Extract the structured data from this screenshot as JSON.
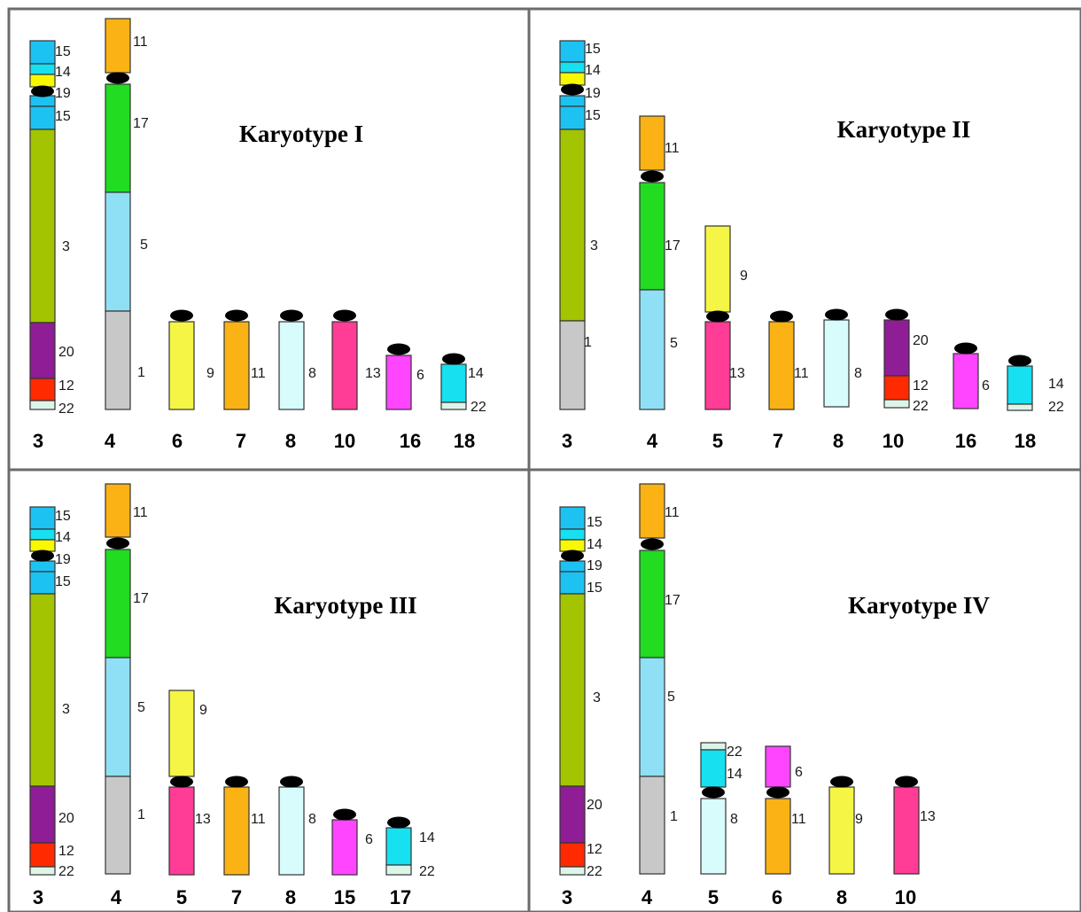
{
  "colors": {
    "1": "#c8c8c8",
    "3": "#a3c400",
    "5": "#8fe0f5",
    "6": "#ff45ff",
    "8": "#d8fbfb",
    "9": "#f5f545",
    "11": "#fbb215",
    "12": "#ff2a00",
    "13": "#ff3c96",
    "14": "#17e0f0",
    "15": "#1cc3f2",
    "17": "#21dc21",
    "19": "#f8f800",
    "20": "#8e1d96",
    "22": "#ddf5e8"
  },
  "panels": [
    {
      "title": "Karyotype I",
      "chromosomes": [
        {
          "number": "3",
          "segments": [
            {
              "label": "15"
            },
            {
              "label": "14"
            },
            {
              "label": "19"
            },
            {
              "label": "15"
            },
            {
              "label": "3"
            },
            {
              "label": "20"
            },
            {
              "label": "12"
            },
            {
              "label": "22"
            }
          ]
        },
        {
          "number": "4",
          "segments": [
            {
              "label": "11"
            },
            {
              "label": "17"
            },
            {
              "label": "5"
            },
            {
              "label": "1"
            }
          ]
        },
        {
          "number": "6",
          "segments": [
            {
              "label": "9"
            }
          ]
        },
        {
          "number": "7",
          "segments": [
            {
              "label": "11"
            }
          ]
        },
        {
          "number": "8",
          "segments": [
            {
              "label": "8"
            }
          ]
        },
        {
          "number": "10",
          "segments": [
            {
              "label": "13"
            }
          ]
        },
        {
          "number": "16",
          "segments": [
            {
              "label": "6"
            }
          ]
        },
        {
          "number": "18",
          "segments": [
            {
              "label": "14"
            },
            {
              "label": "22"
            }
          ]
        }
      ]
    },
    {
      "title": "Karyotype II",
      "chromosomes": [
        {
          "number": "3",
          "segments": [
            {
              "label": "15"
            },
            {
              "label": "14"
            },
            {
              "label": "19"
            },
            {
              "label": "15"
            },
            {
              "label": "3"
            },
            {
              "label": "1"
            }
          ]
        },
        {
          "number": "4",
          "segments": [
            {
              "label": "11"
            },
            {
              "label": "17"
            },
            {
              "label": "5"
            }
          ]
        },
        {
          "number": "5",
          "segments": [
            {
              "label": "9"
            },
            {
              "label": "13"
            }
          ]
        },
        {
          "number": "7",
          "segments": [
            {
              "label": "11"
            }
          ]
        },
        {
          "number": "8",
          "segments": [
            {
              "label": "8"
            }
          ]
        },
        {
          "number": "10",
          "segments": [
            {
              "label": "20"
            },
            {
              "label": "12"
            },
            {
              "label": "22"
            }
          ]
        },
        {
          "number": "16",
          "segments": [
            {
              "label": "6"
            }
          ]
        },
        {
          "number": "18",
          "segments": [
            {
              "label": "14"
            },
            {
              "label": "22"
            }
          ]
        }
      ]
    },
    {
      "title": "Karyotype III",
      "chromosomes": [
        {
          "number": "3",
          "segments": [
            {
              "label": "15"
            },
            {
              "label": "14"
            },
            {
              "label": "19"
            },
            {
              "label": "15"
            },
            {
              "label": "3"
            },
            {
              "label": "20"
            },
            {
              "label": "12"
            },
            {
              "label": "22"
            }
          ]
        },
        {
          "number": "4",
          "segments": [
            {
              "label": "11"
            },
            {
              "label": "17"
            },
            {
              "label": "5"
            },
            {
              "label": "1"
            }
          ]
        },
        {
          "number": "5",
          "segments": [
            {
              "label": "9"
            },
            {
              "label": "13"
            }
          ]
        },
        {
          "number": "7",
          "segments": [
            {
              "label": "11"
            }
          ]
        },
        {
          "number": "8",
          "segments": [
            {
              "label": "8"
            }
          ]
        },
        {
          "number": "15",
          "segments": [
            {
              "label": "6"
            }
          ]
        },
        {
          "number": "17",
          "segments": [
            {
              "label": "14"
            },
            {
              "label": "22"
            }
          ]
        }
      ]
    },
    {
      "title": "Karyotype IV",
      "chromosomes": [
        {
          "number": "3",
          "segments": [
            {
              "label": "15"
            },
            {
              "label": "14"
            },
            {
              "label": "19"
            },
            {
              "label": "15"
            },
            {
              "label": "3"
            },
            {
              "label": "20"
            },
            {
              "label": "12"
            },
            {
              "label": "22"
            }
          ]
        },
        {
          "number": "4",
          "segments": [
            {
              "label": "11"
            },
            {
              "label": "17"
            },
            {
              "label": "5"
            },
            {
              "label": "1"
            }
          ]
        },
        {
          "number": "5",
          "segments": [
            {
              "label": "22"
            },
            {
              "label": "14"
            },
            {
              "label": "8"
            }
          ]
        },
        {
          "number": "6",
          "segments": [
            {
              "label": "6"
            },
            {
              "label": "11"
            }
          ]
        },
        {
          "number": "8",
          "segments": [
            {
              "label": "9"
            }
          ]
        },
        {
          "number": "10",
          "segments": [
            {
              "label": "13"
            }
          ]
        }
      ]
    }
  ]
}
